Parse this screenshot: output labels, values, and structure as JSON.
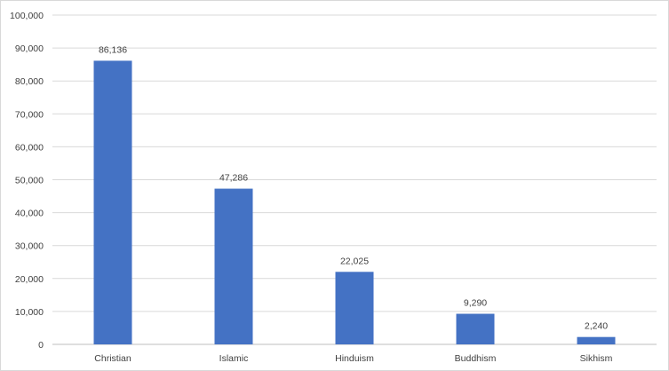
{
  "chart_data": {
    "type": "bar",
    "title": "",
    "xlabel": "",
    "ylabel": "",
    "categories": [
      "Christian",
      "Islamic",
      "Hinduism",
      "Buddhism",
      "Sikhism"
    ],
    "values": [
      86136,
      47286,
      22025,
      9290,
      2240
    ],
    "data_labels": [
      "86,136",
      "47,286",
      "22,025",
      "9,290",
      "2,240"
    ],
    "ylim": [
      0,
      100000
    ],
    "y_ticks": [
      "0",
      "10,000",
      "20,000",
      "30,000",
      "40,000",
      "50,000",
      "60,000",
      "70,000",
      "80,000",
      "90,000",
      "100,000"
    ],
    "grid": true,
    "legend": "none",
    "colors": {
      "bar": "#4472c4",
      "grid": "#d9d9d9",
      "axis": "#bfbfbf",
      "text": "#404040"
    }
  }
}
